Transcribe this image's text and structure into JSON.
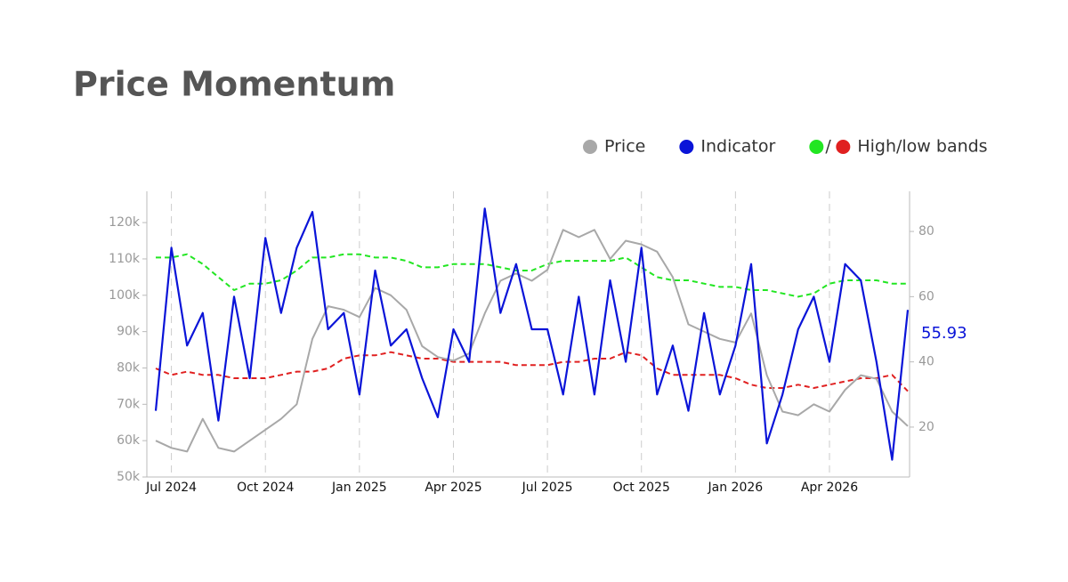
{
  "chart_data": {
    "type": "line",
    "title": "Price Momentum",
    "categories": [
      null,
      "Jul 2024",
      null,
      null,
      null,
      null,
      null,
      "Oct 2024",
      null,
      null,
      null,
      null,
      null,
      "Jan 2025",
      null,
      null,
      null,
      null,
      null,
      "Apr 2025",
      null,
      null,
      null,
      null,
      null,
      "Jul 2025",
      null,
      null,
      null,
      null,
      null,
      "Oct 2025",
      null,
      null,
      null,
      null,
      null,
      "Jan 2026",
      null,
      null,
      null,
      null,
      null,
      "Apr 2026",
      null,
      null,
      null,
      null,
      null
    ],
    "series": [
      {
        "name": "Price",
        "color": "#a8a8a8",
        "values": [
          60000,
          58000,
          57000,
          66000,
          58000,
          57000,
          60000,
          63000,
          66000,
          70000,
          88000,
          97000,
          96000,
          94000,
          102000,
          100000,
          96000,
          86000,
          83000,
          82000,
          84000,
          95000,
          104000,
          106000,
          104000,
          107000,
          118000,
          116000,
          118000,
          110000,
          115000,
          114000,
          112000,
          105000,
          92000,
          90000,
          88000,
          87000,
          95000,
          78000,
          68000,
          67000,
          70000,
          68000,
          74000,
          78000,
          77000,
          68000,
          64000
        ]
      },
      {
        "name": "Indicator",
        "color": "#0a14d8",
        "axis": "y2",
        "values": [
          25,
          75,
          45,
          55,
          22,
          60,
          35,
          78,
          55,
          75,
          86,
          50,
          55,
          30,
          68,
          45,
          50,
          35,
          23,
          50,
          40,
          87,
          55,
          70,
          50,
          50,
          30,
          60,
          30,
          65,
          40,
          75,
          30,
          45,
          25,
          55,
          30,
          45,
          70,
          15,
          30,
          50,
          60,
          40,
          70,
          65,
          40,
          10,
          55.93
        ]
      }
    ],
    "bands": {
      "name": "High/low bands",
      "axis": "y2",
      "high": {
        "color": "#22e622",
        "values": [
          72,
          72,
          73,
          70,
          66,
          62,
          64,
          64,
          65,
          68,
          72,
          72,
          73,
          73,
          72,
          72,
          71,
          69,
          69,
          70,
          70,
          70,
          69,
          68,
          68,
          70,
          71,
          71,
          71,
          71,
          72,
          69,
          66,
          65,
          65,
          64,
          63,
          63,
          62,
          62,
          61,
          60,
          61,
          64,
          65,
          65,
          65,
          64,
          64
        ]
      },
      "low": {
        "color": "#e02020",
        "values": [
          38,
          36,
          37,
          36,
          36,
          35,
          35,
          35,
          36,
          37,
          37,
          38,
          41,
          42,
          42,
          43,
          42,
          41,
          41,
          40,
          40,
          40,
          40,
          39,
          39,
          39,
          40,
          40,
          41,
          41,
          43,
          42,
          38,
          36,
          36,
          36,
          36,
          35,
          33,
          32,
          32,
          33,
          32,
          33,
          34,
          35,
          35,
          36,
          31
        ]
      }
    },
    "ylim": [
      50000,
      128600
    ],
    "yticks": [
      {
        "value": 50000,
        "label": "50k"
      },
      {
        "value": 60000,
        "label": "60k"
      },
      {
        "value": 70000,
        "label": "70k"
      },
      {
        "value": 80000,
        "label": "80k"
      },
      {
        "value": 90000,
        "label": "90k"
      },
      {
        "value": 100000,
        "label": "100k"
      },
      {
        "value": 110000,
        "label": "110k"
      },
      {
        "value": 120000,
        "label": "120k"
      }
    ],
    "y2lim": [
      4.7,
      92.3
    ],
    "y2ticks": [
      20,
      40,
      60,
      80
    ],
    "legend": "top-right"
  }
}
